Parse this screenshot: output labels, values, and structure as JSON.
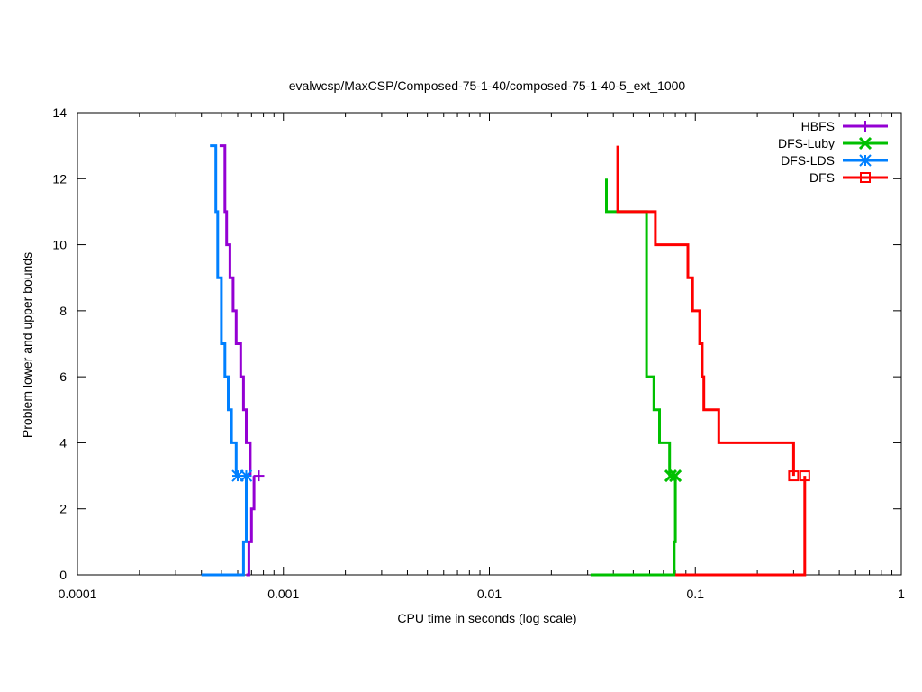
{
  "chart_data": {
    "type": "line",
    "title": "evalwcsp/MaxCSP/Composed-75-1-40/composed-75-1-40-5_ext_1000",
    "xlabel": "CPU time in seconds (log scale)",
    "ylabel": "Problem lower and upper bounds",
    "x_scale": "log",
    "xlim": [
      0.0001,
      1
    ],
    "ylim": [
      0,
      14
    ],
    "x_ticks": [
      0.0001,
      0.001,
      0.01,
      0.1,
      1
    ],
    "x_tick_labels": [
      "0.0001",
      "0.001",
      "0.01",
      "0.1",
      "1"
    ],
    "y_ticks": [
      0,
      2,
      4,
      6,
      8,
      10,
      12,
      14
    ],
    "y_tick_labels": [
      "0",
      "2",
      "4",
      "6",
      "8",
      "10",
      "12",
      "14"
    ],
    "grid": false,
    "legend_position": "top-right",
    "series": [
      {
        "name": "HBFS",
        "color": "#9400d3",
        "marker": "plus",
        "upper": [
          [
            0.00049,
            13
          ],
          [
            0.00052,
            11
          ],
          [
            0.00053,
            10
          ],
          [
            0.00055,
            9
          ],
          [
            0.00057,
            8
          ],
          [
            0.00059,
            7
          ],
          [
            0.00062,
            6
          ],
          [
            0.00064,
            5
          ],
          [
            0.00066,
            4
          ],
          [
            0.00069,
            3
          ]
        ],
        "lower": [
          [
            0.00066,
            0
          ],
          [
            0.00068,
            1
          ],
          [
            0.0007,
            2
          ],
          [
            0.00072,
            3
          ]
        ],
        "markers": [
          [
            0.00076,
            3
          ]
        ]
      },
      {
        "name": "DFS-Luby",
        "color": "#00c000",
        "marker": "x",
        "upper": [
          [
            0.037,
            12
          ],
          [
            0.037,
            11
          ],
          [
            0.058,
            11
          ],
          [
            0.058,
            6
          ],
          [
            0.063,
            6
          ],
          [
            0.063,
            5
          ],
          [
            0.067,
            5
          ],
          [
            0.067,
            4
          ],
          [
            0.075,
            4
          ],
          [
            0.075,
            3
          ]
        ],
        "lower": [
          [
            0.031,
            0
          ],
          [
            0.079,
            0
          ],
          [
            0.079,
            1
          ],
          [
            0.08,
            3
          ]
        ],
        "markers": [
          [
            0.076,
            3
          ],
          [
            0.08,
            3
          ]
        ]
      },
      {
        "name": "DFS-LDS",
        "color": "#0080ff",
        "marker": "star",
        "upper": [
          [
            0.00044,
            13
          ],
          [
            0.00047,
            11
          ],
          [
            0.00048,
            9
          ],
          [
            0.0005,
            7
          ],
          [
            0.00052,
            6
          ],
          [
            0.00054,
            5
          ],
          [
            0.00056,
            4
          ],
          [
            0.00059,
            3
          ]
        ],
        "lower": [
          [
            0.0004,
            0
          ],
          [
            0.00063,
            0
          ],
          [
            0.00064,
            1
          ],
          [
            0.00066,
            3
          ]
        ],
        "markers": [
          [
            0.0006,
            3
          ],
          [
            0.00066,
            3
          ]
        ]
      },
      {
        "name": "DFS",
        "color": "#ff0000",
        "marker": "square",
        "upper": [
          [
            0.042,
            13
          ],
          [
            0.042,
            11
          ],
          [
            0.061,
            11
          ],
          [
            0.064,
            10
          ],
          [
            0.09,
            10
          ],
          [
            0.092,
            9
          ],
          [
            0.097,
            8
          ],
          [
            0.105,
            7
          ],
          [
            0.108,
            6
          ],
          [
            0.11,
            5
          ],
          [
            0.13,
            4
          ],
          [
            0.3,
            4
          ],
          [
            0.3,
            3
          ]
        ],
        "lower": [
          [
            0.08,
            0
          ],
          [
            0.34,
            0
          ],
          [
            0.34,
            3
          ]
        ],
        "markers": [
          [
            0.3,
            3
          ],
          [
            0.34,
            3
          ]
        ]
      }
    ]
  }
}
